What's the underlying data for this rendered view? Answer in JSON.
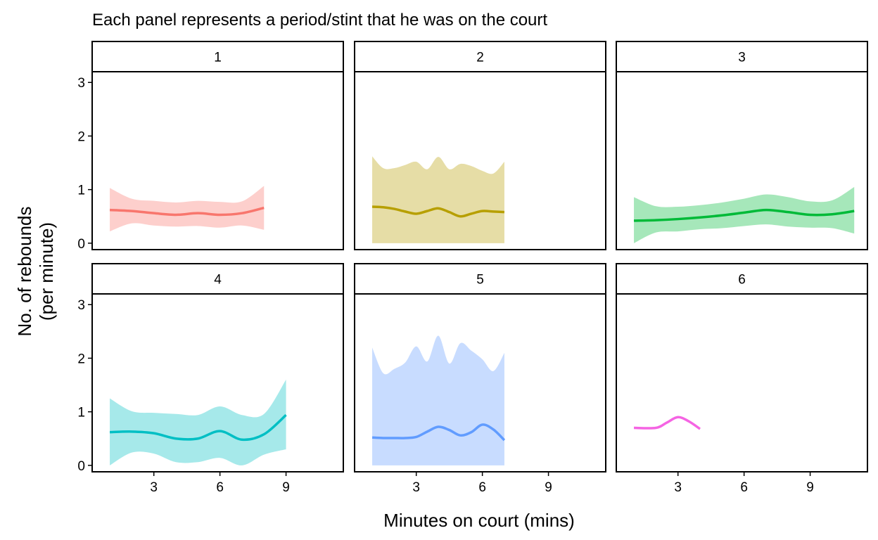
{
  "chart_data": {
    "type": "line",
    "title": "Each panel represents a period/stint that he was on the court",
    "xlabel": "Minutes on court (mins)",
    "ylabel_lines": [
      "No. of rebounds",
      "(per minute)"
    ],
    "xlim": [
      0.2,
      11.6
    ],
    "ylim": [
      -0.12,
      3.2
    ],
    "x_ticks": [
      3,
      6,
      9
    ],
    "y_ticks": [
      0,
      1,
      2,
      3
    ],
    "grid": false,
    "layout": {
      "rows": 2,
      "cols": 3
    },
    "panels": [
      {
        "label": "1",
        "color": "#F8766D",
        "x": [
          1,
          2,
          3,
          4,
          5,
          6,
          7,
          8
        ],
        "y": [
          0.62,
          0.6,
          0.56,
          0.53,
          0.56,
          0.53,
          0.56,
          0.66
        ],
        "upper": [
          1.03,
          0.83,
          0.79,
          0.76,
          0.79,
          0.77,
          0.78,
          1.07
        ],
        "lower": [
          0.22,
          0.37,
          0.33,
          0.31,
          0.32,
          0.29,
          0.33,
          0.25
        ]
      },
      {
        "label": "2",
        "color": "#B79F00",
        "x": [
          1,
          1.5,
          2,
          2.5,
          3,
          3.5,
          4,
          4.5,
          5,
          5.5,
          6,
          6.5,
          7
        ],
        "y": [
          0.68,
          0.67,
          0.64,
          0.59,
          0.55,
          0.6,
          0.65,
          0.58,
          0.5,
          0.55,
          0.6,
          0.59,
          0.58
        ],
        "upper": [
          1.62,
          1.4,
          1.4,
          1.46,
          1.52,
          1.38,
          1.61,
          1.38,
          1.48,
          1.44,
          1.35,
          1.3,
          1.52
        ],
        "lower": [
          0,
          0,
          0,
          0,
          0,
          0,
          0,
          0,
          0,
          0,
          0,
          0,
          0
        ]
      },
      {
        "label": "3",
        "color": "#00BA38",
        "x": [
          1,
          2,
          3,
          4,
          5,
          6,
          7,
          8,
          9,
          10,
          11
        ],
        "y": [
          0.42,
          0.43,
          0.45,
          0.48,
          0.52,
          0.57,
          0.62,
          0.58,
          0.53,
          0.54,
          0.6
        ],
        "upper": [
          0.86,
          0.69,
          0.68,
          0.71,
          0.76,
          0.83,
          0.91,
          0.86,
          0.78,
          0.8,
          1.05
        ],
        "lower": [
          0.0,
          0.2,
          0.22,
          0.26,
          0.28,
          0.32,
          0.35,
          0.31,
          0.29,
          0.28,
          0.18
        ]
      },
      {
        "label": "4",
        "color": "#00BFC4",
        "x": [
          1,
          2,
          3,
          4,
          5,
          6,
          7,
          8,
          9
        ],
        "y": [
          0.62,
          0.63,
          0.6,
          0.5,
          0.5,
          0.64,
          0.48,
          0.58,
          0.94
        ],
        "upper": [
          1.25,
          1.01,
          0.98,
          0.96,
          0.94,
          1.1,
          0.94,
          0.96,
          1.6
        ],
        "lower": [
          0.0,
          0.24,
          0.22,
          0.06,
          0.06,
          0.14,
          0.0,
          0.2,
          0.3
        ]
      },
      {
        "label": "5",
        "color": "#619CFF",
        "x": [
          1,
          1.5,
          2,
          2.5,
          3,
          3.5,
          4,
          4.5,
          5,
          5.5,
          6,
          6.5,
          7
        ],
        "y": [
          0.52,
          0.51,
          0.51,
          0.51,
          0.53,
          0.63,
          0.72,
          0.66,
          0.56,
          0.62,
          0.76,
          0.67,
          0.47
        ],
        "upper": [
          2.2,
          1.72,
          1.8,
          1.92,
          2.22,
          1.94,
          2.42,
          1.9,
          2.28,
          2.14,
          1.98,
          1.76,
          2.1
        ],
        "lower": [
          0,
          0,
          0,
          0,
          0,
          0,
          0,
          0,
          0,
          0,
          0,
          0,
          0
        ]
      },
      {
        "label": "6",
        "color": "#F564E3",
        "x": [
          1,
          2,
          2.5,
          3,
          3.5,
          4
        ],
        "y": [
          0.7,
          0.7,
          0.8,
          0.9,
          0.82,
          0.68
        ],
        "upper": null,
        "lower": null
      }
    ]
  }
}
